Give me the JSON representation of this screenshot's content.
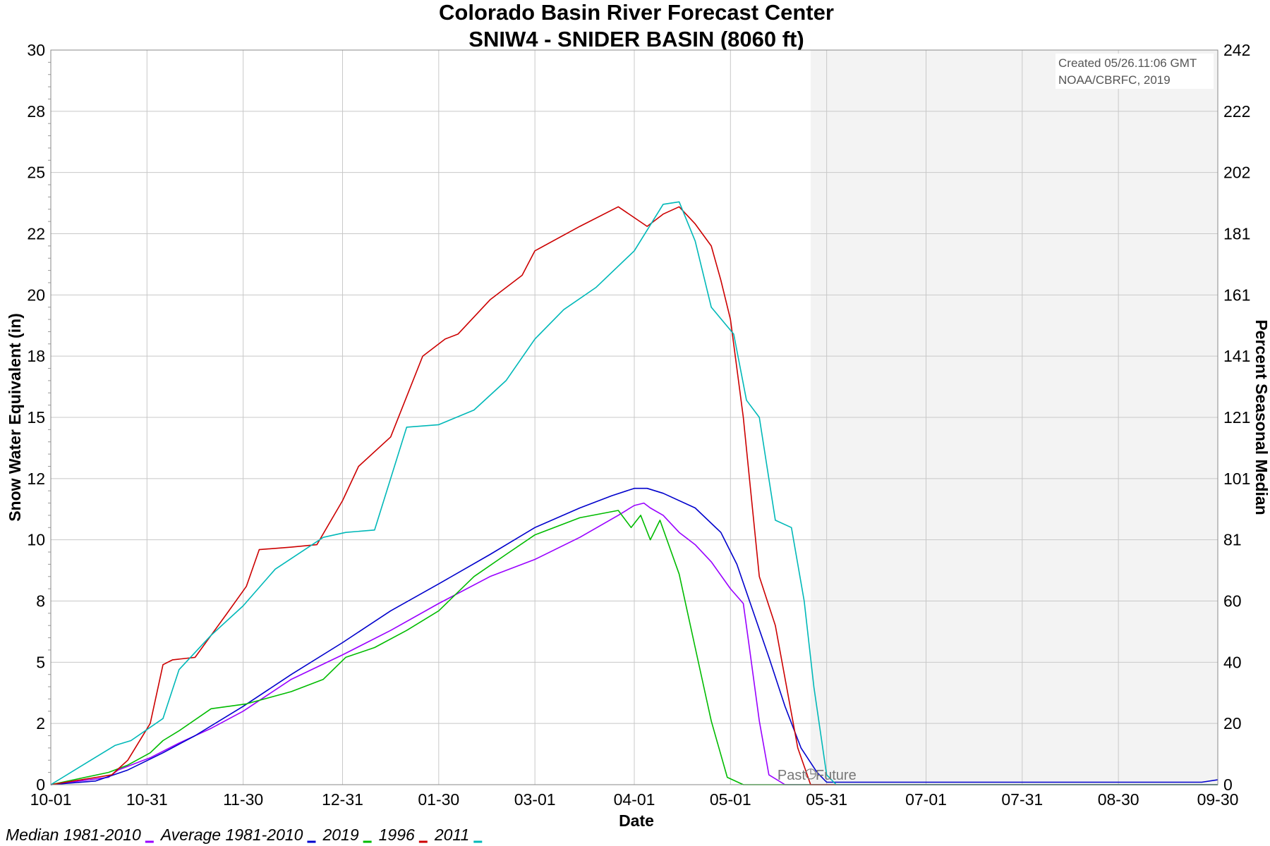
{
  "chart_data": {
    "type": "line",
    "title": "Colorado Basin River Forecast Center",
    "subtitle": "SNIW4 - SNIDER BASIN (8060 ft)",
    "xlabel": "Date",
    "ylabel": "Snow Water Equivalent (in)",
    "ylabel_right": "Percent Seasonal Median",
    "x_ticks": [
      "10-01",
      "10-31",
      "11-30",
      "12-31",
      "01-30",
      "03-01",
      "04-01",
      "05-01",
      "05-31",
      "07-01",
      "07-31",
      "08-30",
      "09-30"
    ],
    "y_ticks": [
      "0",
      "2",
      "5",
      "8",
      "10",
      "12",
      "15",
      "18",
      "20",
      "22",
      "25",
      "28",
      "30"
    ],
    "y_right_ticks": [
      "0",
      "20",
      "40",
      "60",
      "81",
      "101",
      "121",
      "141",
      "161",
      "181",
      "202",
      "222",
      "242"
    ],
    "xlim": [
      "10-01",
      "09-30"
    ],
    "ylim": [
      0,
      30
    ],
    "grid": true,
    "legend_position": "bottom-left",
    "credit_lines": [
      "Created 05/26.11:06 GMT",
      "NOAA/CBRFC, 2019"
    ],
    "past_label": "Past",
    "future_label": "Future",
    "forecast_start": "05-26",
    "series": [
      {
        "name": "Median 1981-2010",
        "color": "#9900ff",
        "x": [
          "10-01",
          "10-19",
          "10-22",
          "11-01",
          "11-10",
          "11-20",
          "11-30",
          "12-15",
          "12-31",
          "01-15",
          "01-30",
          "02-15",
          "03-01",
          "03-15",
          "03-27",
          "04-01",
          "04-04",
          "04-06",
          "04-10",
          "04-15",
          "04-20",
          "04-25",
          "05-01",
          "05-05",
          "05-07",
          "05-10",
          "05-13",
          "05-18",
          "05-31",
          "09-30"
        ],
        "y": [
          0,
          0.3,
          0.6,
          1.1,
          1.7,
          2.3,
          3.0,
          4.3,
          5.3,
          6.3,
          7.4,
          8.5,
          9.2,
          10.1,
          11.0,
          11.4,
          11.5,
          11.3,
          11.0,
          10.3,
          9.8,
          9.1,
          8.0,
          7.4,
          5.5,
          2.6,
          0.4,
          0,
          0,
          0
        ]
      },
      {
        "name": "Average 1981-2010",
        "color": "#0000cc",
        "x": [
          "10-01",
          "10-15",
          "10-25",
          "11-05",
          "11-15",
          "11-30",
          "12-15",
          "12-31",
          "01-15",
          "01-30",
          "02-15",
          "03-01",
          "03-15",
          "03-25",
          "04-01",
          "04-05",
          "04-10",
          "04-20",
          "04-28",
          "05-03",
          "05-08",
          "05-13",
          "05-18",
          "05-23",
          "05-28",
          "05-31",
          "09-25",
          "09-30"
        ],
        "y": [
          0,
          0.15,
          0.6,
          1.3,
          2.0,
          3.2,
          4.5,
          5.8,
          7.1,
          8.2,
          9.4,
          10.5,
          11.3,
          11.8,
          12.1,
          12.1,
          11.9,
          11.3,
          10.3,
          9.0,
          7.1,
          5.2,
          3.2,
          1.5,
          0.5,
          0.1,
          0.1,
          0.2
        ]
      },
      {
        "name": "2019",
        "color": "#00bb00",
        "x": [
          "10-01",
          "10-19",
          "10-25",
          "11-01",
          "11-05",
          "11-10",
          "11-20",
          "12-01",
          "12-15",
          "12-25",
          "01-01",
          "01-10",
          "01-20",
          "01-30",
          "02-10",
          "02-20",
          "03-01",
          "03-15",
          "03-27",
          "03-31",
          "04-03",
          "04-06",
          "04-09",
          "04-12",
          "04-15",
          "04-20",
          "04-25",
          "04-30",
          "05-05",
          "05-10",
          "05-15",
          "05-20",
          "09-30"
        ],
        "y": [
          0,
          0.5,
          0.8,
          1.3,
          1.8,
          2.2,
          3.1,
          3.3,
          3.8,
          4.3,
          5.2,
          5.6,
          6.3,
          7.1,
          8.5,
          9.4,
          10.2,
          10.9,
          11.2,
          10.5,
          11.0,
          10.0,
          10.8,
          9.7,
          8.6,
          5.6,
          2.6,
          0.3,
          0,
          0,
          0,
          0,
          0
        ]
      },
      {
        "name": "1996",
        "color": "#cc0000",
        "x": [
          "10-01",
          "10-20",
          "10-25",
          "11-01",
          "11-05",
          "11-08",
          "11-15",
          "11-25",
          "12-01",
          "12-05",
          "12-15",
          "12-23",
          "12-31",
          "01-05",
          "01-15",
          "01-25",
          "02-01",
          "02-05",
          "02-15",
          "02-25",
          "03-01",
          "03-15",
          "03-27",
          "04-05",
          "04-10",
          "04-15",
          "04-20",
          "04-25",
          "04-28",
          "05-01",
          "05-05",
          "05-10",
          "05-15",
          "05-22",
          "05-26",
          "05-31",
          "09-30"
        ],
        "y": [
          0,
          0.4,
          1.0,
          2.5,
          4.9,
          5.1,
          5.2,
          7.0,
          8.1,
          9.6,
          9.7,
          9.8,
          11.6,
          13.0,
          14.2,
          17.5,
          18.2,
          18.4,
          19.8,
          20.8,
          21.8,
          22.8,
          23.6,
          22.8,
          23.3,
          23.6,
          22.9,
          22.0,
          20.6,
          19.0,
          15.0,
          8.5,
          6.5,
          1.5,
          0,
          0,
          0
        ]
      },
      {
        "name": "2011",
        "color": "#00b8b8",
        "x": [
          "10-01",
          "10-21",
          "10-26",
          "11-05",
          "11-10",
          "11-20",
          "11-30",
          "12-10",
          "12-25",
          "01-01",
          "01-10",
          "01-20",
          "01-30",
          "02-10",
          "02-20",
          "03-01",
          "03-10",
          "03-20",
          "04-01",
          "04-10",
          "04-15",
          "04-20",
          "04-25",
          "05-02",
          "05-06",
          "05-10",
          "05-15",
          "05-20",
          "05-24",
          "05-27",
          "05-31",
          "06-03",
          "06-05",
          "09-30"
        ],
        "y": [
          0,
          1.6,
          1.8,
          2.7,
          4.7,
          6.1,
          7.3,
          8.8,
          10.1,
          10.3,
          10.4,
          14.6,
          14.7,
          15.3,
          16.5,
          18.2,
          19.4,
          20.3,
          21.8,
          23.7,
          23.8,
          22.2,
          19.5,
          18.4,
          15.7,
          15.0,
          10.8,
          10.5,
          7.5,
          4.0,
          0.4,
          0,
          0,
          0
        ]
      }
    ]
  }
}
